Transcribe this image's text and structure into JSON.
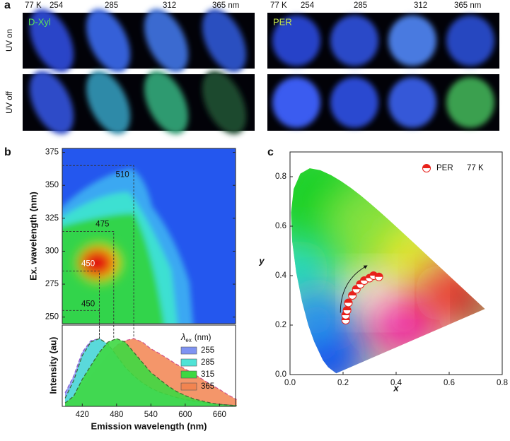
{
  "panel_labels": [
    "a",
    "b",
    "c"
  ],
  "photos": {
    "left": {
      "labels": [
        "77 K",
        "254",
        "285",
        "312",
        "365 nm"
      ],
      "name": "D-Xyl"
    },
    "right": {
      "labels": [
        "77 K",
        "254",
        "285",
        "312",
        "365 nm"
      ],
      "name": "PER"
    },
    "rows": [
      "UV on",
      "UV off"
    ]
  },
  "chart_data": [
    {
      "type": "contour",
      "ylabel": "Ex. wavelength (nm)",
      "ylim": [
        245,
        378
      ],
      "xlim": [
        385,
        688
      ],
      "yticks": [
        250,
        275,
        300,
        325,
        350,
        375
      ],
      "excitation": [
        255,
        285,
        315,
        365
      ],
      "emission_peak": [
        450,
        450,
        475,
        510
      ]
    },
    {
      "type": "area",
      "xlabel": "Emission wavelength (nm)",
      "ylabel": "Intensity (au)",
      "xlim": [
        385,
        688
      ],
      "ylim": [
        0,
        1.2
      ],
      "xticks": [
        420,
        480,
        540,
        600,
        660
      ],
      "legend_title": {
        "symbol": "λ",
        "sub": "ex",
        "unit": "(nm)"
      },
      "x": [
        390,
        405,
        420,
        435,
        450,
        465,
        480,
        495,
        510,
        525,
        540,
        555,
        570,
        585,
        600,
        615,
        630,
        645,
        660,
        675,
        690
      ],
      "series": [
        {
          "name": "255",
          "color": "#7f93f2",
          "values": [
            0.2,
            0.45,
            0.8,
            0.97,
            1.0,
            0.9,
            0.72,
            0.55,
            0.42,
            0.32,
            0.25,
            0.2,
            0.16,
            0.13,
            0.1,
            0.08,
            0.06,
            0.04,
            0.03,
            0.02,
            0.01
          ]
        },
        {
          "name": "285",
          "color": "#50e3d6",
          "values": [
            0.12,
            0.38,
            0.75,
            0.95,
            1.0,
            0.92,
            0.75,
            0.58,
            0.45,
            0.35,
            0.27,
            0.21,
            0.17,
            0.13,
            0.1,
            0.08,
            0.06,
            0.04,
            0.03,
            0.02,
            0.01
          ]
        },
        {
          "name": "315",
          "color": "#3ed842",
          "values": [
            0.05,
            0.15,
            0.4,
            0.6,
            0.8,
            0.95,
            1.0,
            0.95,
            0.8,
            0.65,
            0.5,
            0.4,
            0.3,
            0.22,
            0.16,
            0.11,
            0.08,
            0.05,
            0.03,
            0.02,
            0.01
          ]
        },
        {
          "name": "365",
          "color": "#f28450",
          "values": [
            0.03,
            0.1,
            0.3,
            0.45,
            0.6,
            0.76,
            0.9,
            0.97,
            1.0,
            0.95,
            0.85,
            0.78,
            0.7,
            0.62,
            0.55,
            0.48,
            0.4,
            0.32,
            0.25,
            0.17,
            0.1
          ]
        }
      ]
    },
    {
      "type": "scatter",
      "xlabel": "x",
      "ylabel": "y",
      "xlim": [
        0,
        0.8
      ],
      "ylim": [
        0,
        0.9
      ],
      "xticks": [
        {
          "value": 0,
          "label": "0.0"
        },
        0.2,
        0.4,
        0.6,
        0.8
      ],
      "yticks": [
        {
          "value": 0,
          "label": "0.0"
        },
        0.2,
        0.4,
        0.6,
        0.8
      ],
      "series": [
        {
          "name": "PER",
          "note": "77 K",
          "color": "#e8211b",
          "x": [
            0.21,
            0.21,
            0.215,
            0.22,
            0.235,
            0.25,
            0.265,
            0.28,
            0.3,
            0.315,
            0.335
          ],
          "values": [
            0.22,
            0.24,
            0.26,
            0.29,
            0.32,
            0.345,
            0.365,
            0.38,
            0.39,
            0.4,
            0.395
          ]
        }
      ]
    }
  ]
}
